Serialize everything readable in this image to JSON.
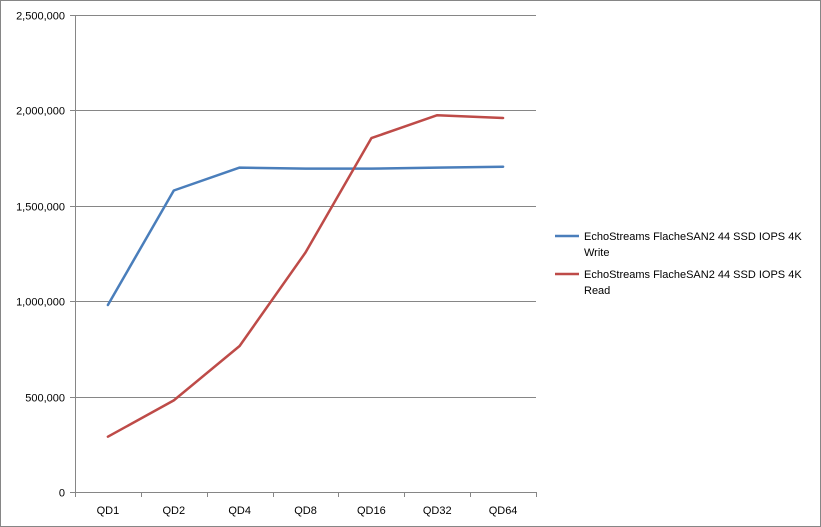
{
  "chart_data": {
    "type": "line",
    "title": "",
    "xlabel": "",
    "ylabel": "",
    "categories": [
      "QD1",
      "QD2",
      "QD4",
      "QD8",
      "QD16",
      "QD32",
      "QD64"
    ],
    "ylim": [
      0,
      2500000
    ],
    "yticks": [
      0,
      500000,
      1000000,
      1500000,
      2000000,
      2500000
    ],
    "ytick_labels": [
      "0",
      "500,000",
      "1,000,000",
      "1,500,000",
      "2,000,000",
      "2,500,000"
    ],
    "grid": "horizontal",
    "legend_position": "right",
    "series": [
      {
        "name": "EchoStreams FlacheSAN2 44 SSD IOPS 4K Write",
        "legend_lines": [
          "EchoStreams FlacheSAN2 44 SSD IOPS 4K",
          "Write"
        ],
        "color": "#4a7ebb",
        "values": [
          980000,
          1580000,
          1700000,
          1695000,
          1695000,
          1700000,
          1705000
        ]
      },
      {
        "name": "EchoStreams FlacheSAN2 44 SSD IOPS 4K Read",
        "legend_lines": [
          "EchoStreams FlacheSAN2 44 SSD IOPS 4K",
          "Read"
        ],
        "color": "#be4b48",
        "values": [
          290000,
          480000,
          765000,
          1255000,
          1855000,
          1975000,
          1960000
        ]
      }
    ]
  }
}
